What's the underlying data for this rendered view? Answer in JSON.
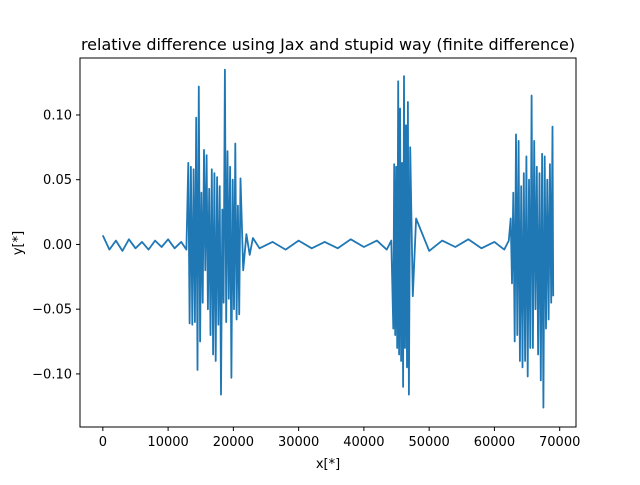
{
  "chart_data": {
    "type": "line",
    "title": "relative difference using Jax and stupid way (finite difference)",
    "xlabel": "x[*]",
    "ylabel": "y[*]",
    "xlim": [
      -3500,
      72500
    ],
    "ylim": [
      -0.141,
      0.144
    ],
    "x_ticks": [
      0,
      10000,
      20000,
      30000,
      40000,
      50000,
      60000,
      70000
    ],
    "x_tick_labels": [
      "0",
      "10000",
      "20000",
      "30000",
      "40000",
      "50000",
      "60000",
      "70000"
    ],
    "y_ticks": [
      -0.1,
      -0.05,
      0.0,
      0.05,
      0.1
    ],
    "y_tick_labels": [
      "−0.10",
      "−0.05",
      "0.00",
      "0.05",
      "0.10"
    ],
    "grid": false,
    "legend": "none",
    "colors": {
      "line": "#1f77b4",
      "axes": "#000000",
      "background": "#ffffff"
    },
    "series": [
      {
        "x": [
          0,
          1000,
          2000,
          3000,
          4000,
          5000,
          6000,
          7000,
          8000,
          9000,
          10000,
          11000,
          12000,
          12800,
          13100,
          13300,
          13500,
          13700,
          13900,
          14100,
          14300,
          14500,
          14700,
          14900,
          15100,
          15300,
          15500,
          15700,
          15900,
          16100,
          16300,
          16500,
          16700,
          16900,
          17100,
          17300,
          17500,
          17700,
          17900,
          18100,
          18300,
          18500,
          18700,
          18900,
          19100,
          19300,
          19500,
          19700,
          19900,
          20100,
          20300,
          20500,
          20700,
          20900,
          21100,
          21500,
          22000,
          22500,
          23000,
          24000,
          26000,
          28000,
          30000,
          32000,
          34000,
          36000,
          38000,
          40000,
          42000,
          43500,
          44200,
          44500,
          44650,
          44800,
          44950,
          45100,
          45250,
          45400,
          45550,
          45700,
          45850,
          46000,
          46150,
          46300,
          46450,
          46600,
          46750,
          46900,
          47100,
          47500,
          48000,
          50000,
          52000,
          54000,
          56000,
          58000,
          60000,
          61500,
          62200,
          62500,
          62700,
          62900,
          63100,
          63300,
          63500,
          63700,
          63900,
          64100,
          64300,
          64500,
          64700,
          64900,
          65100,
          65300,
          65500,
          65700,
          65900,
          66100,
          66300,
          66500,
          66700,
          66900,
          67100,
          67300,
          67500,
          67700,
          67900,
          68100,
          68300,
          68500,
          68700,
          68900,
          69000
        ],
        "y": [
          0.007,
          -0.004,
          0.003,
          -0.005,
          0.004,
          -0.003,
          0.002,
          -0.004,
          0.003,
          -0.002,
          0.004,
          -0.003,
          0.002,
          -0.004,
          0.063,
          -0.061,
          0.06,
          -0.062,
          0.058,
          -0.06,
          0.098,
          -0.097,
          0.122,
          -0.075,
          0.04,
          -0.045,
          0.073,
          -0.02,
          0.069,
          -0.05,
          0.043,
          -0.07,
          0.058,
          -0.085,
          0.055,
          -0.09,
          0.052,
          -0.062,
          0.045,
          -0.116,
          0.027,
          -0.045,
          0.135,
          -0.06,
          0.072,
          -0.042,
          0.06,
          -0.103,
          0.05,
          -0.05,
          0.078,
          -0.058,
          0.03,
          -0.054,
          0.051,
          -0.02,
          0.008,
          -0.008,
          0.005,
          -0.003,
          0.002,
          -0.004,
          0.003,
          -0.003,
          0.002,
          -0.003,
          0.004,
          -0.002,
          0.003,
          -0.004,
          0.003,
          -0.065,
          0.062,
          -0.07,
          0.06,
          -0.08,
          0.126,
          -0.085,
          0.105,
          -0.09,
          0.063,
          -0.11,
          0.13,
          -0.08,
          0.092,
          -0.095,
          0.11,
          -0.116,
          0.075,
          -0.04,
          0.02,
          -0.005,
          0.003,
          -0.002,
          0.004,
          -0.003,
          0.002,
          -0.004,
          0.003,
          0.02,
          -0.03,
          0.04,
          -0.075,
          0.085,
          -0.07,
          0.08,
          -0.09,
          0.045,
          -0.095,
          0.055,
          -0.09,
          0.068,
          -0.102,
          0.05,
          -0.08,
          0.115,
          -0.08,
          0.08,
          -0.05,
          0.06,
          -0.085,
          0.055,
          -0.105,
          0.07,
          -0.126,
          0.068,
          -0.065,
          0.05,
          -0.058,
          0.062,
          -0.045,
          0.091,
          -0.04
        ]
      }
    ]
  }
}
